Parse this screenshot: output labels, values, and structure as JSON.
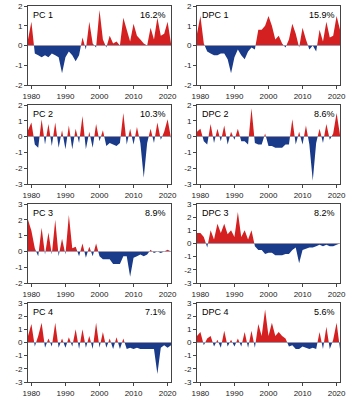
{
  "chart_data": [
    {
      "type": "area",
      "annotations": [
        "PC 1",
        "16.2%"
      ],
      "colors": [
        "#d42020",
        "#1a3a8a"
      ],
      "grid": false,
      "x": [
        1979,
        1980,
        1981,
        1982,
        1983,
        1984,
        1985,
        1986,
        1987,
        1988,
        1989,
        1990,
        1991,
        1992,
        1993,
        1994,
        1995,
        1996,
        1997,
        1998,
        1999,
        2000,
        2001,
        2002,
        2003,
        2004,
        2005,
        2006,
        2007,
        2008,
        2009,
        2010,
        2011,
        2012,
        2013,
        2014,
        2015,
        2016,
        2017,
        2018,
        2019,
        2020,
        2021
      ],
      "values": [
        0.3,
        1.2,
        -0.4,
        -0.5,
        -0.6,
        -0.5,
        -0.6,
        -0.4,
        -0.5,
        -0.6,
        -1.4,
        -0.6,
        -0.3,
        -0.5,
        -0.8,
        -0.5,
        0.4,
        -0.2,
        1.2,
        0.1,
        -0.1,
        1.8,
        0.3,
        -0.1,
        0.5,
        0.1,
        0.2,
        0.0,
        1.4,
        0.8,
        0.2,
        1.1,
        0.5,
        0.3,
        0.1,
        0.0,
        0.9,
        0.3,
        1.4,
        0.5,
        0.6,
        1.2,
        0.1
      ],
      "xlim": [
        1979,
        2021
      ],
      "xticks": [
        1980,
        1990,
        2000,
        2010,
        2020
      ],
      "ylim": [
        -2,
        2
      ],
      "yticks": [
        -2,
        -1,
        0,
        1,
        2
      ]
    },
    {
      "type": "area",
      "annotations": [
        "DPC 1",
        "15.9%"
      ],
      "colors": [
        "#d42020",
        "#1a3a8a"
      ],
      "grid": false,
      "x": [
        1979,
        1980,
        1981,
        1982,
        1983,
        1984,
        1985,
        1986,
        1987,
        1988,
        1989,
        1990,
        1991,
        1992,
        1993,
        1994,
        1995,
        1996,
        1997,
        1998,
        1999,
        2000,
        2001,
        2002,
        2003,
        2004,
        2005,
        2006,
        2007,
        2008,
        2009,
        2010,
        2011,
        2012,
        2013,
        2014,
        2015,
        2016,
        2017,
        2018,
        2019,
        2020,
        2021
      ],
      "values": [
        0.6,
        1.5,
        0.1,
        -0.3,
        -0.4,
        -0.5,
        -0.5,
        -0.4,
        -0.4,
        -0.7,
        -1.4,
        -0.6,
        -0.2,
        -0.5,
        -0.7,
        -0.3,
        -0.1,
        -0.2,
        0.8,
        0.8,
        1.0,
        1.5,
        1.0,
        0.3,
        0.5,
        0.1,
        -0.1,
        0.3,
        1.1,
        0.6,
        -0.1,
        0.9,
        0.3,
        -0.2,
        0.0,
        -0.3,
        0.8,
        0.2,
        1.2,
        0.4,
        0.5,
        1.5,
        0.8
      ],
      "xlim": [
        1979,
        2021
      ],
      "xticks": [
        1980,
        1990,
        2000,
        2010,
        2020
      ],
      "ylim": [
        -2,
        2
      ],
      "yticks": [
        -2,
        -1,
        0,
        1,
        2
      ]
    },
    {
      "type": "area",
      "annotations": [
        "PC 2",
        "10.3%"
      ],
      "colors": [
        "#d42020",
        "#1a3a8a"
      ],
      "grid": false,
      "x": [
        1979,
        1980,
        1981,
        1982,
        1983,
        1984,
        1985,
        1986,
        1987,
        1988,
        1989,
        1990,
        1991,
        1992,
        1993,
        1994,
        1995,
        1996,
        1997,
        1998,
        1999,
        2000,
        2001,
        2002,
        2003,
        2004,
        2005,
        2006,
        2007,
        2008,
        2009,
        2010,
        2011,
        2012,
        2013,
        2014,
        2015,
        2016,
        2017,
        2018,
        2019,
        2020,
        2021
      ],
      "values": [
        0.4,
        0.9,
        -0.5,
        -0.7,
        1.1,
        -0.5,
        0.8,
        -0.6,
        0.9,
        -0.7,
        0.4,
        -0.8,
        0.7,
        -0.8,
        0.5,
        -0.4,
        1.3,
        -0.8,
        0.3,
        -0.7,
        0.8,
        -0.3,
        0.4,
        -0.6,
        -0.4,
        -0.5,
        -0.6,
        -0.4,
        1.5,
        -0.5,
        0.5,
        -0.5,
        0.6,
        -0.4,
        -2.6,
        -0.4,
        0.5,
        -0.4,
        0.9,
        -0.2,
        0.3,
        1.1,
        -0.1
      ],
      "xlim": [
        1979,
        2021
      ],
      "xticks": [
        1980,
        1990,
        2000,
        2010,
        2020
      ],
      "ylim": [
        -3,
        2
      ],
      "yticks": [
        -3,
        -2,
        -1,
        0,
        1,
        2
      ]
    },
    {
      "type": "area",
      "annotations": [
        "DPC 2",
        "8.6%"
      ],
      "colors": [
        "#d42020",
        "#1a3a8a"
      ],
      "grid": false,
      "x": [
        1979,
        1980,
        1981,
        1982,
        1983,
        1984,
        1985,
        1986,
        1987,
        1988,
        1989,
        1990,
        1991,
        1992,
        1993,
        1994,
        1995,
        1996,
        1997,
        1998,
        1999,
        2000,
        2001,
        2002,
        2003,
        2004,
        2005,
        2006,
        2007,
        2008,
        2009,
        2010,
        2011,
        2012,
        2013,
        2014,
        2015,
        2016,
        2017,
        2018,
        2019,
        2020,
        2021
      ],
      "values": [
        0.3,
        0.5,
        -0.3,
        -0.5,
        0.8,
        -0.4,
        0.5,
        -0.3,
        0.7,
        -0.5,
        0.3,
        -0.2,
        0.5,
        -0.3,
        -0.3,
        -0.5,
        1.8,
        -0.4,
        -0.5,
        -0.5,
        0.2,
        -0.6,
        -0.6,
        -0.7,
        -0.7,
        -0.7,
        -0.5,
        -0.5,
        1.1,
        -0.5,
        0.3,
        -0.5,
        0.7,
        -0.5,
        -2.8,
        -0.4,
        0.5,
        -0.4,
        0.8,
        -0.2,
        0.2,
        1.5,
        0.1
      ],
      "xlim": [
        1979,
        2021
      ],
      "xticks": [
        1980,
        1990,
        2000,
        2010,
        2020
      ],
      "ylim": [
        -3,
        2
      ],
      "yticks": [
        -3,
        -2,
        -1,
        0,
        1,
        2
      ]
    },
    {
      "type": "area",
      "annotations": [
        "PC 3",
        "8.9%"
      ],
      "colors": [
        "#d42020",
        "#1a3a8a"
      ],
      "grid": false,
      "x": [
        1979,
        1980,
        1981,
        1982,
        1983,
        1984,
        1985,
        1986,
        1987,
        1988,
        1989,
        1990,
        1991,
        1992,
        1993,
        1994,
        1995,
        1996,
        1997,
        1998,
        1999,
        2000,
        2001,
        2002,
        2003,
        2004,
        2005,
        2006,
        2007,
        2008,
        2009,
        2010,
        2011,
        2012,
        2013,
        2014,
        2015,
        2016,
        2017,
        2018,
        2019,
        2020,
        2021
      ],
      "values": [
        2.0,
        1.3,
        0.2,
        -0.3,
        1.5,
        -0.2,
        1.2,
        -0.2,
        2.0,
        -0.3,
        0.8,
        -0.2,
        2.3,
        0.2,
        0.3,
        -0.3,
        0.5,
        -0.4,
        0.3,
        -0.3,
        0.5,
        -0.3,
        -0.5,
        -0.5,
        -0.5,
        -0.8,
        -0.8,
        -0.8,
        -0.3,
        -0.3,
        -1.6,
        -0.4,
        -0.3,
        -0.2,
        -0.3,
        -0.2,
        0.1,
        -0.1,
        0.0,
        -0.1,
        0.0,
        0.1,
        0.0
      ],
      "xlim": [
        1979,
        2021
      ],
      "xticks": [
        1980,
        1990,
        2000,
        2010,
        2020
      ],
      "ylim": [
        -2,
        3
      ],
      "yticks": [
        -2,
        -1,
        0,
        1,
        2,
        3
      ]
    },
    {
      "type": "area",
      "annotations": [
        "DPC 3",
        "8.2%"
      ],
      "colors": [
        "#d42020",
        "#1a3a8a"
      ],
      "grid": false,
      "x": [
        1979,
        1980,
        1981,
        1982,
        1983,
        1984,
        1985,
        1986,
        1987,
        1988,
        1989,
        1990,
        1991,
        1992,
        1993,
        1994,
        1995,
        1996,
        1997,
        1998,
        1999,
        2000,
        2001,
        2002,
        2003,
        2004,
        2005,
        2006,
        2007,
        2008,
        2009,
        2010,
        2011,
        2012,
        2013,
        2014,
        2015,
        2016,
        2017,
        2018,
        2019,
        2020,
        2021
      ],
      "values": [
        0.8,
        0.8,
        0.5,
        -0.3,
        1.0,
        0.3,
        1.5,
        0.8,
        1.5,
        0.7,
        1.0,
        0.5,
        2.4,
        0.5,
        1.0,
        0.3,
        1.0,
        -0.2,
        -0.5,
        -0.5,
        -0.8,
        -0.7,
        -0.7,
        -0.9,
        -0.9,
        -0.9,
        -0.8,
        -0.8,
        -0.5,
        -0.3,
        -1.5,
        -0.5,
        -0.4,
        -0.3,
        -0.3,
        -0.2,
        -0.1,
        -0.2,
        -0.1,
        -0.2,
        -0.2,
        -0.1,
        0.0
      ],
      "xlim": [
        1979,
        2021
      ],
      "xticks": [
        1980,
        1990,
        2000,
        2010,
        2020
      ],
      "ylim": [
        -3,
        3
      ],
      "yticks": [
        -3,
        -2,
        -1,
        0,
        1,
        2,
        3
      ]
    },
    {
      "type": "area",
      "annotations": [
        "PC 4",
        "7.1%"
      ],
      "colors": [
        "#d42020",
        "#1a3a8a"
      ],
      "grid": false,
      "x": [
        1979,
        1980,
        1981,
        1982,
        1983,
        1984,
        1985,
        1986,
        1987,
        1988,
        1989,
        1990,
        1991,
        1992,
        1993,
        1994,
        1995,
        1996,
        1997,
        1998,
        1999,
        2000,
        2001,
        2002,
        2003,
        2004,
        2005,
        2006,
        2007,
        2008,
        2009,
        2010,
        2011,
        2012,
        2013,
        2014,
        2015,
        2016,
        2017,
        2018,
        2019,
        2020,
        2021
      ],
      "values": [
        0.5,
        1.4,
        -0.3,
        0.5,
        1.5,
        -0.4,
        0.3,
        -0.3,
        1.5,
        -0.4,
        0.3,
        -0.4,
        0.4,
        -0.3,
        1.0,
        -0.5,
        1.0,
        -0.4,
        0.5,
        -0.5,
        1.5,
        -0.4,
        0.8,
        -0.4,
        0.3,
        -0.5,
        0.4,
        -0.5,
        0.3,
        -0.5,
        -0.4,
        -0.5,
        -0.4,
        -0.5,
        -0.5,
        -0.5,
        -0.5,
        -0.5,
        -2.4,
        -0.4,
        -0.2,
        -0.4,
        -0.2
      ],
      "xlim": [
        1979,
        2021
      ],
      "xticks": [
        1980,
        1990,
        2000,
        2010,
        2020
      ],
      "ylim": [
        -3,
        3
      ],
      "yticks": [
        -3,
        -2,
        -1,
        0,
        1,
        2,
        3
      ]
    },
    {
      "type": "area",
      "annotations": [
        "DPC 4",
        "5.6%"
      ],
      "colors": [
        "#d42020",
        "#1a3a8a"
      ],
      "grid": false,
      "x": [
        1979,
        1980,
        1981,
        1982,
        1983,
        1984,
        1985,
        1986,
        1987,
        1988,
        1989,
        1990,
        1991,
        1992,
        1993,
        1994,
        1995,
        1996,
        1997,
        1998,
        1999,
        2000,
        2001,
        2002,
        2003,
        2004,
        2005,
        2006,
        2007,
        2008,
        2009,
        2010,
        2011,
        2012,
        2013,
        2014,
        2015,
        2016,
        2017,
        2018,
        2019,
        2020,
        2021
      ],
      "values": [
        0.5,
        0.8,
        -0.2,
        0.3,
        0.5,
        -0.3,
        0.2,
        -0.4,
        0.9,
        -0.3,
        0.2,
        -0.3,
        0.3,
        -0.3,
        0.8,
        -0.4,
        0.9,
        -0.4,
        1.4,
        0.5,
        2.5,
        0.5,
        1.5,
        0.5,
        0.8,
        0.5,
        0.3,
        -0.3,
        -0.2,
        -0.5,
        -0.5,
        -0.3,
        -0.4,
        -0.5,
        -0.4,
        -0.5,
        0.8,
        -0.5,
        1.2,
        -0.5,
        0.2,
        1.5,
        -0.5
      ],
      "xlim": [
        1979,
        2021
      ],
      "xticks": [
        1980,
        1990,
        2000,
        2010,
        2020
      ],
      "ylim": [
        -3,
        3
      ],
      "yticks": [
        -3,
        -2,
        -1,
        0,
        1,
        2,
        3
      ]
    }
  ]
}
